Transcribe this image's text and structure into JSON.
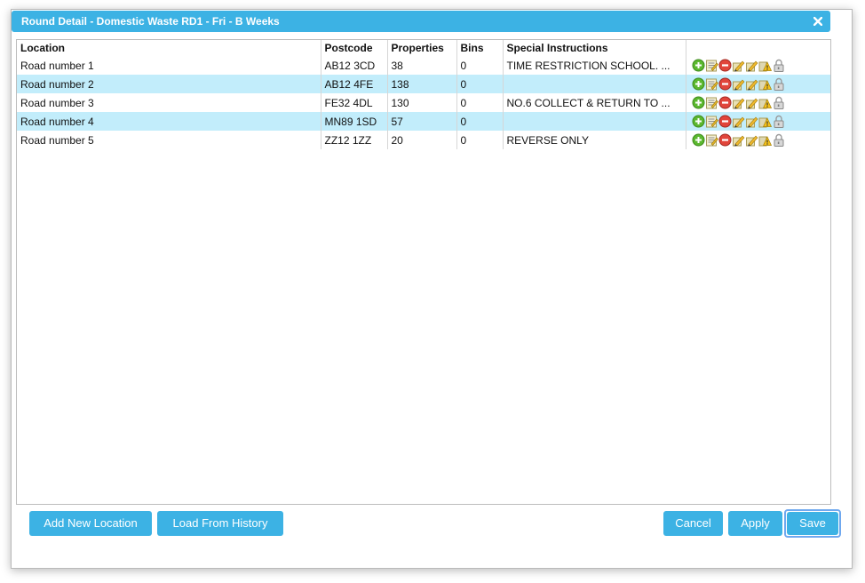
{
  "dialog": {
    "title": "Round Detail - Domestic Waste RD1 - Fri - B Weeks"
  },
  "table": {
    "headers": {
      "location": "Location",
      "postcode": "Postcode",
      "properties": "Properties",
      "bins": "Bins",
      "special": "Special Instructions"
    },
    "rows": [
      {
        "location": "Road number 1",
        "postcode": "AB12 3CD",
        "properties": "38",
        "bins": "0",
        "special": "TIME RESTRICTION SCHOOL. ..."
      },
      {
        "location": "Road number 2",
        "postcode": "AB12 4FE",
        "properties": "138",
        "bins": "0",
        "special": ""
      },
      {
        "location": "Road number 3",
        "postcode": "FE32 4DL",
        "properties": "130",
        "bins": "0",
        "special": "NO.6 COLLECT & RETURN TO ..."
      },
      {
        "location": "Road number 4",
        "postcode": "MN89 1SD",
        "properties": "57",
        "bins": "0",
        "special": ""
      },
      {
        "location": "Road number 5",
        "postcode": "ZZ12 1ZZ",
        "properties": "20",
        "bins": "0",
        "special": "REVERSE ONLY"
      }
    ],
    "row_icons": [
      "add-icon",
      "edit-icon",
      "remove-icon",
      "edit-pencil-icon",
      "edit-pencil-icon",
      "warning-icon",
      "lock-icon"
    ]
  },
  "buttons": {
    "add_new_location": "Add New Location",
    "load_from_history": "Load From History",
    "cancel": "Cancel",
    "apply": "Apply",
    "save": "Save"
  },
  "colors": {
    "accent": "#3cb2e4",
    "row_highlight": "#c2edfb",
    "focus_ring": "#6fa8ef"
  }
}
